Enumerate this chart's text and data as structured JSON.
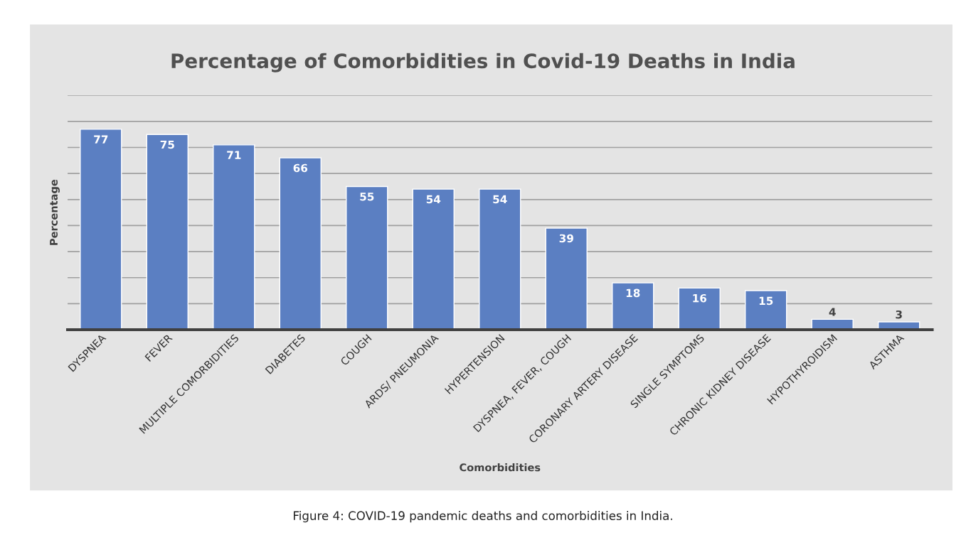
{
  "chart_data": {
    "type": "bar",
    "title": "Percentage of Comorbidities in Covid-19 Deaths in India",
    "xlabel": "Comorbidities",
    "ylabel": "Percentage",
    "categories": [
      "DYSPNEA",
      "FEVER",
      "MULTIPLE COMORBIDITIES",
      "DIABETES",
      "COUGH",
      "ARDS/ PNEUMONIA",
      "HYPERTENSION",
      "DYSPNEA, FEVER, COUGH",
      "CORONARY ARTERY DISEASE",
      "SINGLE SYMPTOMS",
      "CHRONIC KIDNEY DISEASE",
      "HYPOTHYROIDISM",
      "ASTHMA"
    ],
    "values": [
      77,
      75,
      71,
      66,
      55,
      54,
      54,
      39,
      18,
      16,
      15,
      4,
      3
    ],
    "color": "#5b7fc2",
    "data_labels": true,
    "ylim": [
      0,
      90
    ],
    "yticks": [
      {
        "value": 0,
        "label": null
      },
      {
        "value": 10,
        "label": null
      },
      {
        "value": 20,
        "label": null
      },
      {
        "value": 30,
        "label": null
      },
      {
        "value": 40,
        "label": null
      },
      {
        "value": 50,
        "label": null
      },
      {
        "value": 60,
        "label": null
      },
      {
        "value": 70,
        "label": null
      },
      {
        "value": 80,
        "label": null
      },
      {
        "value": 90,
        "label": null
      }
    ],
    "tick_labels": "x",
    "grid": "y",
    "legend": false,
    "annotations": [
      "Figure 4: COVID-19 pandemic deaths and comorbidities in India."
    ]
  }
}
